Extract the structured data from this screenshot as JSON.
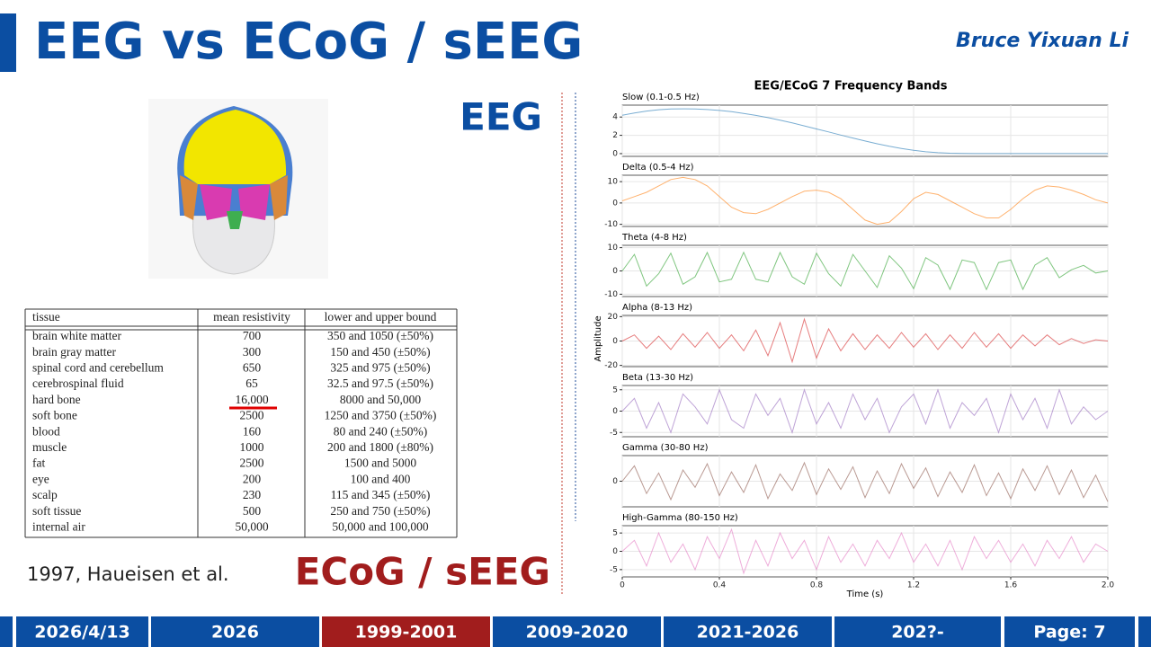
{
  "header": {
    "title": "EEG vs ECoG / sEEG",
    "author": "Bruce Yixuan Li"
  },
  "labels": {
    "eeg": "EEG",
    "ecog": "ECoG / sEEG",
    "citation": "1997, Haueisen et al."
  },
  "table": {
    "header": [
      "tissue",
      "mean resistivity",
      "lower and upper bound"
    ],
    "rows": [
      [
        "brain white matter",
        "700",
        "350 and 1050 (±50%)"
      ],
      [
        "brain gray matter",
        "300",
        "150 and 450 (±50%)"
      ],
      [
        "spinal cord and cerebellum",
        "650",
        "325 and 975 (±50%)"
      ],
      [
        "cerebrospinal fluid",
        "65",
        "32.5 and 97.5 (±50%)"
      ],
      [
        "hard bone",
        "16,000",
        "8000 and 50,000"
      ],
      [
        "soft bone",
        "2500",
        "1250 and 3750 (±50%)"
      ],
      [
        "blood",
        "160",
        "80 and 240 (±50%)"
      ],
      [
        "muscle",
        "1000",
        "200 and 1800 (±80%)"
      ],
      [
        "fat",
        "2500",
        "1500 and 5000"
      ],
      [
        "eye",
        "200",
        "100 and 400"
      ],
      [
        "scalp",
        "230",
        "115 and 345 (±50%)"
      ],
      [
        "soft tissue",
        "500",
        "250 and 750 (±50%)"
      ],
      [
        "internal air",
        "50,000",
        "50,000 and 100,000"
      ]
    ]
  },
  "figure": {
    "title": "EEG/ECoG 7 Frequency Bands",
    "ylabel": "Amplitude",
    "xlabel": "Time (s)"
  },
  "chart_data": [
    {
      "type": "line",
      "title": "Slow (0.1-0.5 Hz)",
      "x": [
        0,
        0.05,
        0.1,
        0.15,
        0.2,
        0.25,
        0.3,
        0.35,
        0.4,
        0.45,
        0.5,
        0.55,
        0.6,
        0.65,
        0.7,
        0.75,
        0.8,
        0.85,
        0.9,
        0.95,
        1,
        1.05,
        1.1,
        1.15,
        1.2,
        1.25,
        1.3,
        1.35,
        1.4,
        1.45,
        1.5,
        1.55,
        1.6,
        1.65,
        1.7,
        1.75,
        1.8,
        1.85,
        1.9,
        1.95,
        2
      ],
      "series": [
        {
          "color": "#1f77b4",
          "values": [
            4.2,
            4.45,
            4.65,
            4.8,
            4.88,
            4.9,
            4.88,
            4.82,
            4.72,
            4.58,
            4.4,
            4.18,
            3.93,
            3.65,
            3.35,
            3.03,
            2.7,
            2.37,
            2.03,
            1.7,
            1.38,
            1.08,
            0.8,
            0.56,
            0.36,
            0.2,
            0.1,
            0.04,
            0.01,
            0,
            0,
            0,
            0,
            0,
            0,
            0,
            0,
            0,
            0,
            0,
            0
          ]
        }
      ],
      "xlim": [
        0,
        2
      ],
      "ylim": [
        -0.3,
        5.3
      ],
      "yticks": [
        0,
        2,
        4
      ],
      "grid": true
    },
    {
      "type": "line",
      "title": "Delta (0.5-4 Hz)",
      "x": [
        0,
        0.05,
        0.1,
        0.15,
        0.2,
        0.25,
        0.3,
        0.35,
        0.4,
        0.45,
        0.5,
        0.55,
        0.6,
        0.65,
        0.7,
        0.75,
        0.8,
        0.85,
        0.9,
        0.95,
        1,
        1.05,
        1.1,
        1.15,
        1.2,
        1.25,
        1.3,
        1.35,
        1.4,
        1.45,
        1.5,
        1.55,
        1.6,
        1.65,
        1.7,
        1.75,
        1.8,
        1.85,
        1.9,
        1.95,
        2
      ],
      "series": [
        {
          "color": "#ff7f0e",
          "values": [
            1,
            3,
            5,
            8,
            11,
            12,
            11,
            8,
            3,
            -2,
            -4.5,
            -5,
            -3,
            0,
            3,
            5.5,
            6,
            5,
            2,
            -3,
            -8,
            -10,
            -9,
            -4,
            2,
            5,
            4,
            1,
            -2,
            -5,
            -7,
            -7,
            -3,
            2,
            6,
            8,
            7.5,
            6,
            4,
            1.5,
            0
          ]
        }
      ],
      "xlim": [
        0,
        2
      ],
      "ylim": [
        -11,
        13
      ],
      "yticks": [
        -10,
        0,
        10
      ],
      "grid": true
    },
    {
      "type": "line",
      "title": "Theta (4-8 Hz)",
      "x": [
        0,
        0.05,
        0.1,
        0.15,
        0.2,
        0.25,
        0.3,
        0.35,
        0.4,
        0.45,
        0.5,
        0.55,
        0.6,
        0.65,
        0.7,
        0.75,
        0.8,
        0.85,
        0.9,
        0.95,
        1,
        1.05,
        1.1,
        1.15,
        1.2,
        1.25,
        1.3,
        1.35,
        1.4,
        1.45,
        1.5,
        1.55,
        1.6,
        1.65,
        1.7,
        1.75,
        1.8,
        1.85,
        1.9,
        1.95,
        2
      ],
      "series": [
        {
          "color": "#2ca02c",
          "values": [
            0,
            7.1,
            -6.5,
            -1.2,
            7.6,
            -5.7,
            -2.5,
            7.9,
            -4.7,
            -3.6,
            8,
            -3.6,
            -4.7,
            7.9,
            -2.5,
            -5.7,
            7.6,
            -1.2,
            -6.5,
            7.1,
            0,
            -7.1,
            6.5,
            1.2,
            -7.6,
            5.7,
            2.5,
            -7.9,
            4.7,
            3.6,
            -8,
            3.6,
            4.7,
            -7.9,
            2.5,
            5.7,
            -2.9,
            0.5,
            2.4,
            -0.9,
            0
          ]
        }
      ],
      "xlim": [
        0,
        2
      ],
      "ylim": [
        -11,
        11
      ],
      "yticks": [
        -10,
        0,
        10
      ],
      "grid": true
    },
    {
      "type": "line",
      "title": "Alpha (8-13 Hz)",
      "x": [
        0,
        0.05,
        0.1,
        0.15,
        0.2,
        0.25,
        0.3,
        0.35,
        0.4,
        0.45,
        0.5,
        0.55,
        0.6,
        0.65,
        0.7,
        0.75,
        0.8,
        0.85,
        0.9,
        0.95,
        1,
        1.05,
        1.1,
        1.15,
        1.2,
        1.25,
        1.3,
        1.35,
        1.4,
        1.45,
        1.5,
        1.55,
        1.6,
        1.65,
        1.7,
        1.75,
        1.8,
        1.85,
        1.9,
        1.95,
        2
      ],
      "series": [
        {
          "color": "#d62728",
          "values": [
            0,
            5,
            -6,
            4,
            -7,
            6,
            -5,
            7,
            -6,
            5,
            -8,
            9,
            -12,
            15,
            -17,
            18,
            -14,
            10,
            -8,
            6,
            -7,
            5,
            -6,
            7,
            -5,
            6,
            -7,
            5,
            -6,
            7,
            -5,
            6,
            -6,
            5,
            -4,
            5,
            -3,
            2,
            -2,
            1,
            0
          ]
        }
      ],
      "xlim": [
        0,
        2
      ],
      "ylim": [
        -21,
        21
      ],
      "yticks": [
        -20,
        0,
        20
      ],
      "grid": true
    },
    {
      "type": "line",
      "title": "Beta (13-30 Hz)",
      "x": [
        0,
        0.05,
        0.1,
        0.15,
        0.2,
        0.25,
        0.3,
        0.35,
        0.4,
        0.45,
        0.5,
        0.55,
        0.6,
        0.65,
        0.7,
        0.75,
        0.8,
        0.85,
        0.9,
        0.95,
        1,
        1.05,
        1.1,
        1.15,
        1.2,
        1.25,
        1.3,
        1.35,
        1.4,
        1.45,
        1.5,
        1.55,
        1.6,
        1.65,
        1.7,
        1.75,
        1.8,
        1.85,
        1.9,
        1.95,
        2
      ],
      "series": [
        {
          "color": "#9467bd",
          "values": [
            0,
            3,
            -4,
            2,
            -5,
            4,
            1,
            -3,
            5,
            -2,
            -4,
            4,
            -1,
            3,
            -5,
            5,
            -3,
            2,
            -4,
            4,
            -2,
            3,
            -5,
            1,
            4,
            -3,
            5,
            -4,
            2,
            -1,
            3,
            -5,
            4,
            -2,
            3,
            -4,
            5,
            -3,
            1,
            -2,
            0
          ]
        }
      ],
      "xlim": [
        0,
        2
      ],
      "ylim": [
        -6,
        6
      ],
      "yticks": [
        -5,
        0,
        5
      ],
      "grid": true
    },
    {
      "type": "line",
      "title": "Gamma (30-80 Hz)",
      "x": [
        0,
        0.05,
        0.1,
        0.15,
        0.2,
        0.25,
        0.3,
        0.35,
        0.4,
        0.45,
        0.5,
        0.55,
        0.6,
        0.65,
        0.7,
        0.75,
        0.8,
        0.85,
        0.9,
        0.95,
        1,
        1.05,
        1.1,
        1.15,
        1.2,
        1.25,
        1.3,
        1.35,
        1.4,
        1.45,
        1.5,
        1.55,
        1.6,
        1.65,
        1.7,
        1.75,
        1.8,
        1.85,
        1.9,
        1.95,
        2
      ],
      "series": [
        {
          "color": "#8c564b",
          "values": [
            0,
            1.5,
            -1.2,
            0.8,
            -1.8,
            1.1,
            -0.6,
            1.7,
            -1.4,
            0.9,
            -1.1,
            1.6,
            -1.7,
            0.7,
            -0.9,
            1.8,
            -1.3,
            1.2,
            -0.8,
            1.4,
            -1.6,
            1,
            -1.2,
            1.7,
            -0.7,
            1.3,
            -1.5,
            0.9,
            -1.1,
            1.6,
            -1.4,
            0.8,
            -1.7,
            1.2,
            -0.9,
            1.5,
            -1.3,
            1.1,
            -1.6,
            0.6,
            -2
          ]
        }
      ],
      "xlim": [
        0,
        2
      ],
      "ylim": [
        -2.5,
        2.5
      ],
      "yticks": [
        0
      ],
      "grid": true
    },
    {
      "type": "line",
      "title": "High-Gamma (80-150 Hz)",
      "x": [
        0,
        0.05,
        0.1,
        0.15,
        0.2,
        0.25,
        0.3,
        0.35,
        0.4,
        0.45,
        0.5,
        0.55,
        0.6,
        0.65,
        0.7,
        0.75,
        0.8,
        0.85,
        0.9,
        0.95,
        1,
        1.05,
        1.1,
        1.15,
        1.2,
        1.25,
        1.3,
        1.35,
        1.4,
        1.45,
        1.5,
        1.55,
        1.6,
        1.65,
        1.7,
        1.75,
        1.8,
        1.85,
        1.9,
        1.95,
        2
      ],
      "series": [
        {
          "color": "#e377c2",
          "values": [
            0,
            3,
            -4,
            5,
            -3,
            2,
            -5,
            4,
            -2,
            6,
            -6,
            3,
            -4,
            5,
            -2,
            3,
            -5,
            4,
            -3,
            2,
            -4,
            3,
            -2,
            5,
            -3,
            2,
            -4,
            3,
            -5,
            4,
            -2,
            3,
            -3,
            2,
            -4,
            3,
            -2,
            4,
            -3,
            2,
            0
          ]
        }
      ],
      "xlim": [
        0,
        2
      ],
      "xticks": [
        0,
        0.4,
        0.8,
        1.2,
        1.6,
        {
          "value": 2,
          "label": "2.0"
        }
      ],
      "ylim": [
        -7,
        7
      ],
      "yticks": [
        -5,
        0,
        5
      ],
      "grid": true
    }
  ],
  "footer": [
    "2026/4/13",
    "2026",
    "1999-2001",
    "2009-2020",
    "2021-2026",
    "202?-",
    "Page: 7"
  ]
}
